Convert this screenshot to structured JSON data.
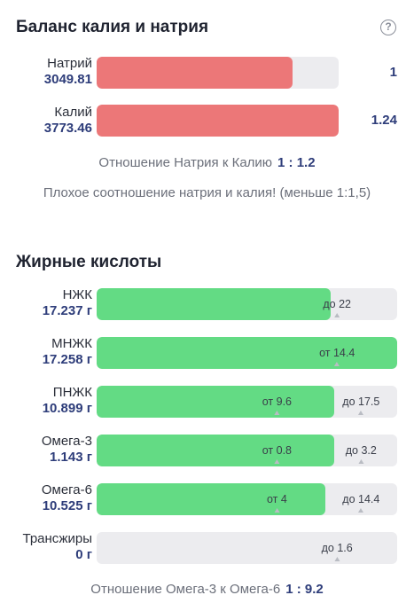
{
  "balance": {
    "title": "Баланс калия и натрия",
    "help_icon": "question-circle-icon",
    "rows": [
      {
        "name": "Натрий",
        "value": "3049.81",
        "ratio": "1",
        "fill_fraction": 0.81
      },
      {
        "name": "Калий",
        "value": "3773.46",
        "ratio": "1.24",
        "fill_fraction": 1.0
      }
    ],
    "ratio_label": "Отношение Натрия к Калию",
    "ratio_value": "1 : 1.2",
    "warning": "Плохое соотношение натрия и калия! (меньше 1:1,5)"
  },
  "fatty": {
    "title": "Жирные кислоты",
    "rows": [
      {
        "name": "НЖК",
        "value": "17.237 г",
        "fill_fraction": 0.78,
        "min_label": "",
        "max_label": "до 22"
      },
      {
        "name": "МНЖК",
        "value": "17.258 г",
        "fill_fraction": 1.0,
        "min_label": "от 14.4",
        "max_label": ""
      },
      {
        "name": "ПНЖК",
        "value": "10.899 г",
        "fill_fraction": 0.79,
        "min_label": "от 9.6",
        "max_label": "до 17.5"
      },
      {
        "name": "Омега-3",
        "value": "1.143 г",
        "fill_fraction": 0.79,
        "min_label": "от 0.8",
        "max_label": "до 3.2"
      },
      {
        "name": "Омега-6",
        "value": "10.525 г",
        "fill_fraction": 0.76,
        "min_label": "от 4",
        "max_label": "до 14.4"
      },
      {
        "name": "Трансжиры",
        "value": "0 г",
        "fill_fraction": 0,
        "min_label": "",
        "max_label": "до 1.6"
      }
    ],
    "ratio_label": "Отношение Омега-3 к Омега-6",
    "ratio_value": "1 : 9.2"
  },
  "colors": {
    "sodium_potassium_bar": "#ec7778",
    "fatty_bar": "#63db84",
    "track": "#ececef",
    "value_text": "#2e3d7a"
  }
}
